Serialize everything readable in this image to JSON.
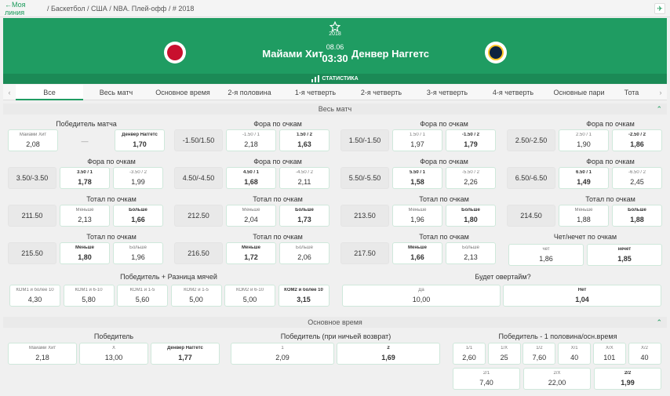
{
  "breadcrumb": {
    "my_line": "←Моя линия",
    "path": "/ Баскетбол / США / NBA. Плей-офф / # 2018"
  },
  "match": {
    "year": "2018",
    "date": "08.06",
    "time": "03:30",
    "team1": "Майами Хит",
    "team2": "Денвер Наггетс",
    "stats": "СТАТИСТИКА",
    "colors": {
      "green": "#1f9c62",
      "heat": "#c8102e",
      "nuggets": "#0e2240"
    }
  },
  "tabs": [
    "Все",
    "Весь матч",
    "Основное время",
    "2-я половина",
    "1-я четверть",
    "2-я четверть",
    "3-я четверть",
    "4-я четверть",
    "Основные пари",
    "Тота"
  ],
  "sections": {
    "whole": "Весь матч",
    "main": "Основное время"
  },
  "winner": {
    "title": "Победитель матча",
    "c1": {
      "l": "Майами Хит",
      "v": "2,08"
    },
    "mid": "—",
    "c2": {
      "l": "Денвер Наггетс",
      "v": "1,70"
    }
  },
  "handicap_title": "Фора по очкам",
  "total_title": "Тотал по очкам",
  "handicaps": [
    {
      "line": "-1.50/1.50",
      "a": {
        "l": "-1.50 / 1",
        "v": "2,18"
      },
      "b": {
        "l": "1.50 / 2",
        "v": "1,63"
      }
    },
    {
      "line": "1.50/-1.50",
      "a": {
        "l": "1.50 / 1",
        "v": "1,97"
      },
      "b": {
        "l": "-1.50 / 2",
        "v": "1,79"
      }
    },
    {
      "line": "2.50/-2.50",
      "a": {
        "l": "2.50 / 1",
        "v": "1,90"
      },
      "b": {
        "l": "-2.50 / 2",
        "v": "1,86"
      }
    },
    {
      "line": "3.50/-3.50",
      "a": {
        "l": "3.50 / 1",
        "v": "1,78"
      },
      "b": {
        "l": "-3.50 / 2",
        "v": "1,99"
      }
    },
    {
      "line": "4.50/-4.50",
      "a": {
        "l": "4.50 / 1",
        "v": "1,68"
      },
      "b": {
        "l": "-4.50 / 2",
        "v": "2,11"
      }
    },
    {
      "line": "5.50/-5.50",
      "a": {
        "l": "5.50 / 1",
        "v": "1,58"
      },
      "b": {
        "l": "-5.50 / 2",
        "v": "2,26"
      }
    },
    {
      "line": "6.50/-6.50",
      "a": {
        "l": "6.50 / 1",
        "v": "1,49"
      },
      "b": {
        "l": "-6.50 / 2",
        "v": "2,45"
      }
    }
  ],
  "totals": [
    {
      "line": "211.50",
      "a": {
        "l": "Меньше",
        "v": "2,13"
      },
      "b": {
        "l": "Больше",
        "v": "1,66"
      }
    },
    {
      "line": "212.50",
      "a": {
        "l": "Меньше",
        "v": "2,04"
      },
      "b": {
        "l": "Больше",
        "v": "1,73"
      }
    },
    {
      "line": "213.50",
      "a": {
        "l": "Меньше",
        "v": "1,96"
      },
      "b": {
        "l": "Больше",
        "v": "1,80"
      }
    },
    {
      "line": "214.50",
      "a": {
        "l": "Меньше",
        "v": "1,88"
      },
      "b": {
        "l": "Больше",
        "v": "1,88"
      }
    },
    {
      "line": "215.50",
      "a": {
        "l": "Меньше",
        "v": "1,80"
      },
      "b": {
        "l": "Больше",
        "v": "1,96"
      }
    },
    {
      "line": "216.50",
      "a": {
        "l": "Меньше",
        "v": "1,72"
      },
      "b": {
        "l": "Больше",
        "v": "2,06"
      }
    },
    {
      "line": "217.50",
      "a": {
        "l": "Меньше",
        "v": "1,66"
      },
      "b": {
        "l": "Больше",
        "v": "2,13"
      }
    }
  ],
  "oddeven": {
    "title": "Чет/нечет по очкам",
    "a": {
      "l": "чет",
      "v": "1,86"
    },
    "b": {
      "l": "нечет",
      "v": "1,85"
    }
  },
  "margin": {
    "title": "Победитель + Разница мячей",
    "items": [
      {
        "l": "КОМ1 и более 10",
        "v": "4,30"
      },
      {
        "l": "КОМ1 и 6-10",
        "v": "5,80"
      },
      {
        "l": "КОМ1 и 1-5",
        "v": "5,60"
      },
      {
        "l": "КОМ2 и 1-5",
        "v": "5,00"
      },
      {
        "l": "КОМ2 и 6-10",
        "v": "5,00"
      },
      {
        "l": "КОМ2 и более 10",
        "v": "3,15"
      }
    ]
  },
  "overtime": {
    "title": "Будет овертайм?",
    "a": {
      "l": "Да",
      "v": "10,00"
    },
    "b": {
      "l": "Нет",
      "v": "1,04"
    }
  },
  "main_winner": {
    "title": "Победитель",
    "a": {
      "l": "Майами Хит",
      "v": "2,18"
    },
    "x": {
      "l": "Х",
      "v": "13,00"
    },
    "b": {
      "l": "Денвер Наггетс",
      "v": "1,77"
    }
  },
  "dnb": {
    "title": "Победитель (при ничьей возврат)",
    "a": {
      "l": "1",
      "v": "2,09"
    },
    "b": {
      "l": "2",
      "v": "1,69"
    }
  },
  "htft": {
    "title": "Победитель - 1 половина/осн.время",
    "items": [
      {
        "l": "1/1",
        "v": "2,60"
      },
      {
        "l": "1/Х",
        "v": "25"
      },
      {
        "l": "1/2",
        "v": "7,60"
      },
      {
        "l": "Х/1",
        "v": "40"
      },
      {
        "l": "Х/Х",
        "v": "101"
      },
      {
        "l": "Х/2",
        "v": "40"
      },
      {
        "l": "2/1",
        "v": "7,40"
      },
      {
        "l": "2/Х",
        "v": "22,00"
      },
      {
        "l": "2/2",
        "v": "1,99"
      }
    ]
  }
}
